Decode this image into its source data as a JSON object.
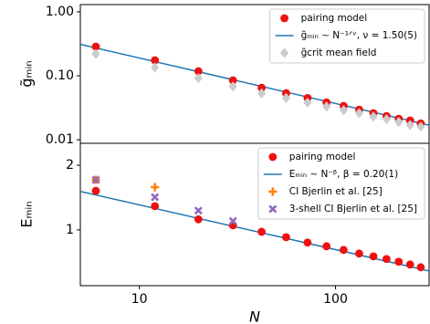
{
  "chart_data": [
    {
      "type": "scatter",
      "ylabel": "g̃ₘᵢₙ",
      "xscale": "log",
      "yscale": "log",
      "xlim": [
        5,
        300
      ],
      "ylim": [
        0.0088,
        1.3
      ],
      "yticks": [
        {
          "value": 0.01,
          "label": "0.01"
        },
        {
          "value": 0.1,
          "label": "0.10"
        },
        {
          "value": 1,
          "label": "1.00"
        }
      ],
      "legend": "upper right",
      "series": [
        {
          "name": "pairing model",
          "marker": "circle",
          "color": "#ee1111",
          "x": [
            6,
            12,
            20,
            30,
            42,
            56,
            72,
            90,
            110,
            132,
            156,
            182,
            210,
            240,
            272
          ],
          "values": [
            0.286,
            0.175,
            0.118,
            0.085,
            0.065,
            0.0535,
            0.045,
            0.0385,
            0.0338,
            0.0296,
            0.026,
            0.0235,
            0.0213,
            0.02,
            0.018
          ]
        },
        {
          "name": "g̃ₘᵢₙ ∼ N⁻¹ᐟᵛ,  ν = 1.50(5)",
          "marker": "line",
          "color": "#1f77b4",
          "x": [
            5,
            300
          ],
          "values": [
            0.31,
            0.0169
          ]
        },
        {
          "name": "g̃crit mean field",
          "marker": "diamond",
          "color": "#cccccc",
          "x": [
            6,
            12,
            20,
            30,
            42,
            56,
            72,
            90,
            110,
            132,
            156,
            182,
            210,
            240,
            272
          ],
          "values": [
            0.22,
            0.135,
            0.092,
            0.068,
            0.053,
            0.045,
            0.038,
            0.033,
            0.029,
            0.026,
            0.023,
            0.021,
            0.019,
            0.017,
            0.016
          ]
        }
      ]
    },
    {
      "type": "scatter",
      "ylabel": "Eₘᵢₙ",
      "xlabel": "N",
      "xscale": "log",
      "yscale": "log",
      "xlim": [
        5,
        300
      ],
      "ylim": [
        0.55,
        2.53
      ],
      "xticks": [
        10,
        100
      ],
      "yticks": [
        1,
        2
      ],
      "legend": "upper right",
      "series": [
        {
          "name": "pairing model",
          "marker": "circle",
          "color": "#ee1111",
          "x": [
            6,
            12,
            20,
            30,
            42,
            56,
            72,
            90,
            110,
            132,
            156,
            182,
            210,
            240,
            272
          ],
          "values": [
            1.52,
            1.29,
            1.12,
            1.05,
            0.98,
            0.925,
            0.873,
            0.839,
            0.807,
            0.776,
            0.753,
            0.732,
            0.711,
            0.69,
            0.67
          ]
        },
        {
          "name": "Eₘᵢₙ ∼ N⁻ᵝ,  β = 0.20(1)",
          "marker": "line",
          "color": "#1f77b4",
          "x": [
            5,
            300
          ],
          "values": [
            1.51,
            0.644
          ]
        },
        {
          "name": "CI Bjerlin et al. [25]",
          "marker": "plus",
          "color": "#ff7f0e",
          "x": [
            6,
            12
          ],
          "values": [
            1.71,
            1.58
          ]
        },
        {
          "name": "3-shell CI Bjerlin et al. [25]",
          "marker": "cross",
          "color": "#9467bd",
          "x": [
            6,
            12,
            20,
            30
          ],
          "values": [
            1.71,
            1.42,
            1.23,
            1.1
          ]
        }
      ]
    }
  ]
}
